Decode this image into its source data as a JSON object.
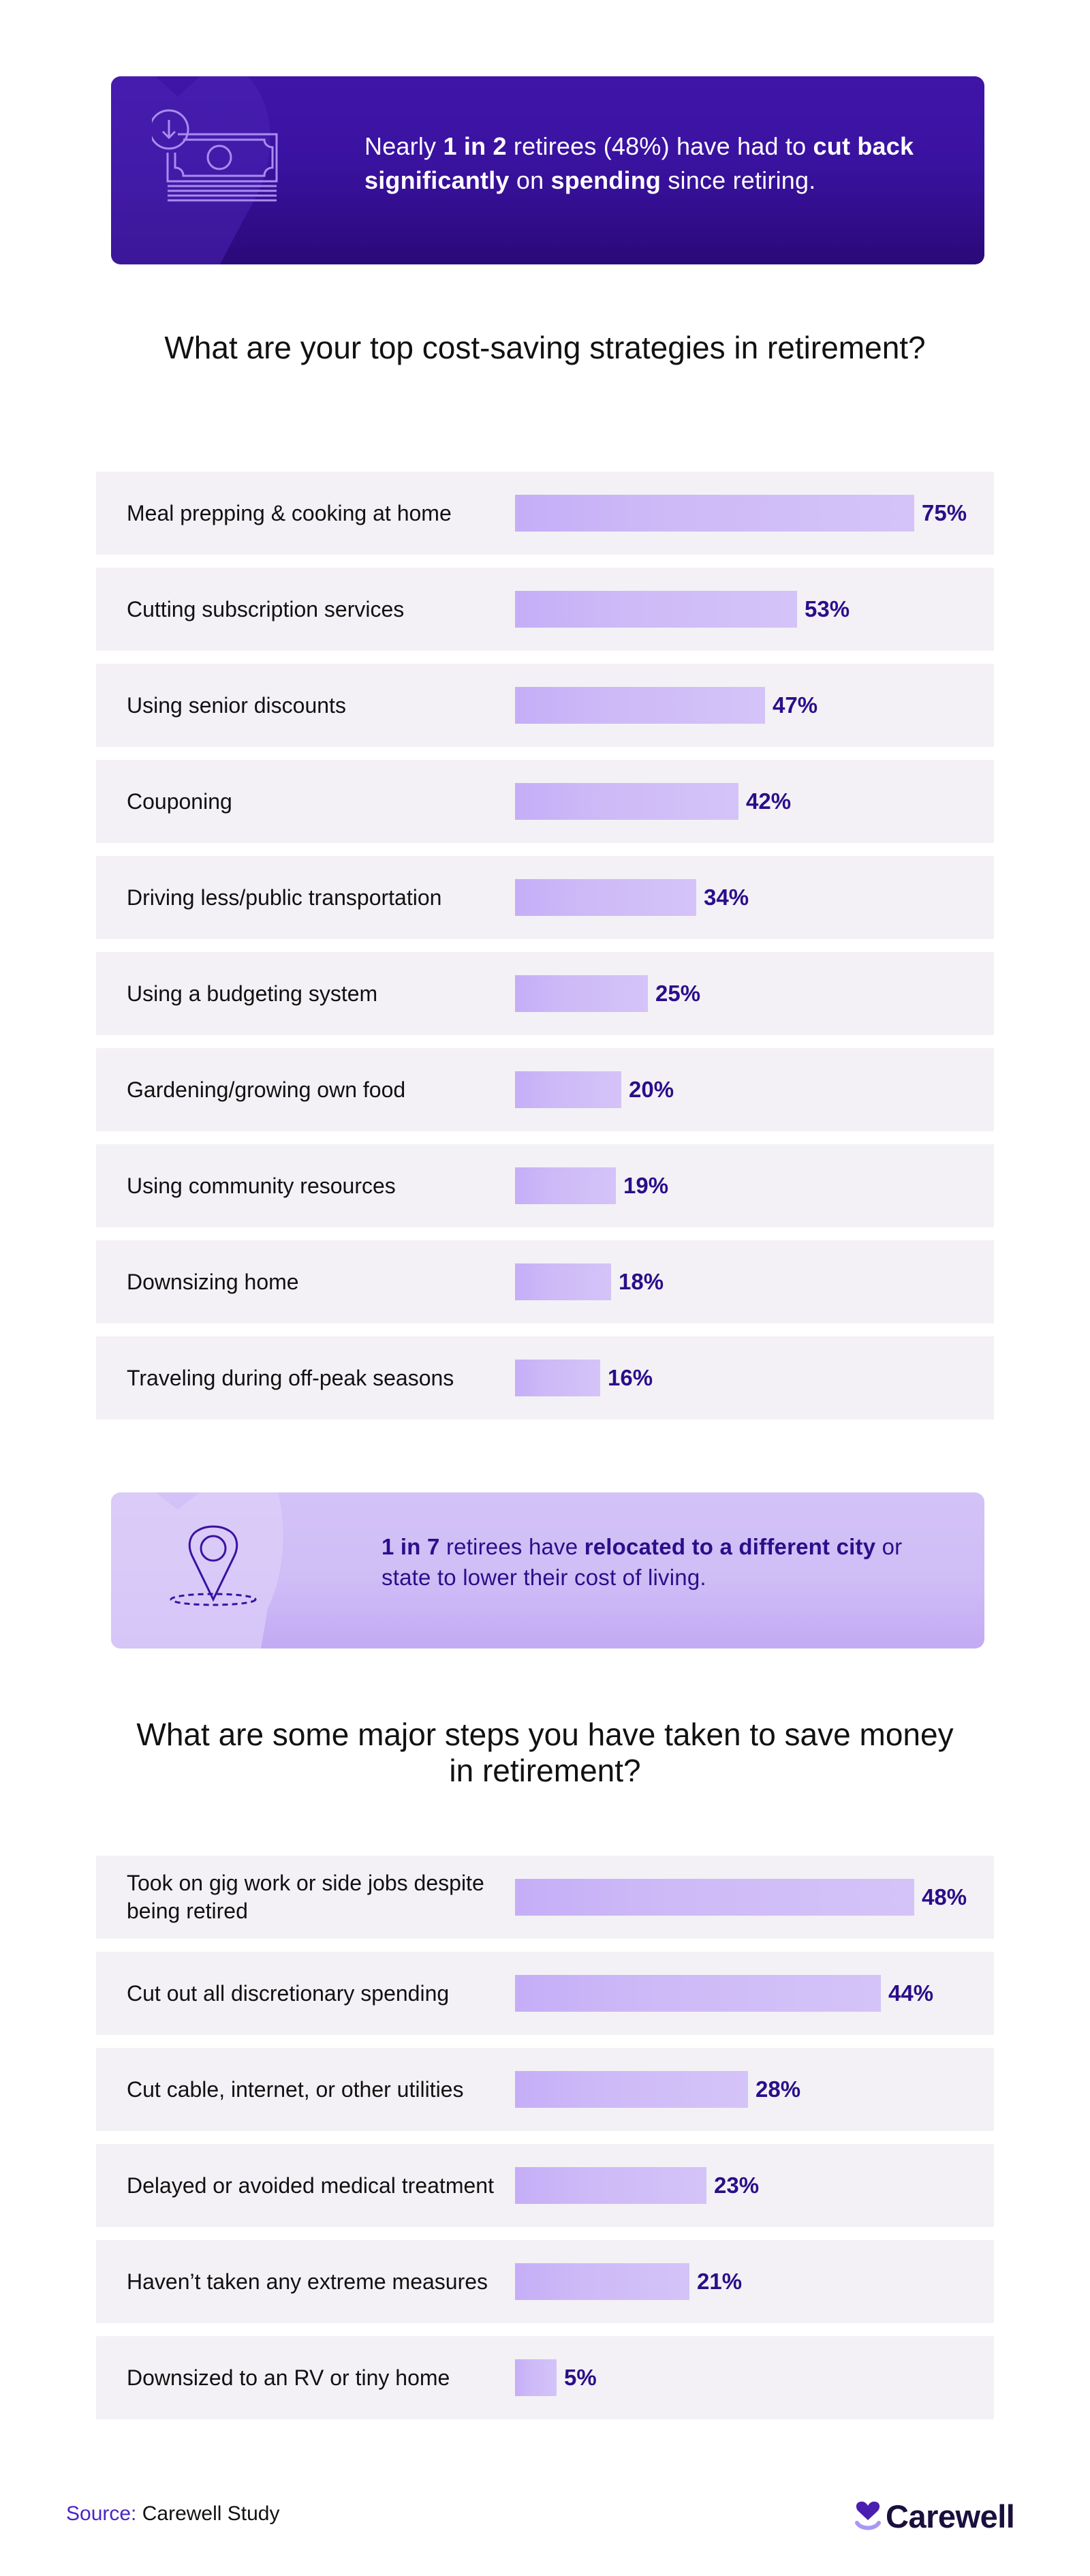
{
  "stat_card_1": {
    "icon": "money-down-icon",
    "segments": [
      {
        "text": "Nearly ",
        "bold": false
      },
      {
        "text": "1 in 2",
        "bold": true
      },
      {
        "text": " retirees (48%) have had to ",
        "bold": false
      },
      {
        "text": "cut back significantly",
        "bold": true
      },
      {
        "text": " on ",
        "bold": false
      },
      {
        "text": "spending",
        "bold": true
      },
      {
        "text": " since retiring.",
        "bold": false
      }
    ]
  },
  "section_1": {
    "title": "What are your top cost-saving strategies in retirement?"
  },
  "stat_card_2": {
    "icon": "location-pin-icon",
    "segments": [
      {
        "text": "1 in 7",
        "bold": true
      },
      {
        "text": " retirees have ",
        "bold": false
      },
      {
        "text": "relocated to a different city",
        "bold": true
      },
      {
        "text": " or state to lower their cost of living.",
        "bold": false
      }
    ]
  },
  "section_2": {
    "title": "What are some major steps you have taken to save money in retirement?"
  },
  "footer": {
    "source_label": "Source:",
    "source_value": "Carewell Study",
    "logo_text": "Carewell",
    "logo_icon": "carewell-heart-icon"
  },
  "colors": {
    "primary_dark": "#3f15a8",
    "accent_text": "#2a0e8a",
    "bar": "#c5aef7",
    "row_bg": "#f3f1f5",
    "light_card": "#d3c2f7",
    "source_label": "#4b25c4"
  },
  "chart_data": [
    {
      "type": "bar",
      "orientation": "horizontal",
      "title": "What are your top cost-saving strategies in retirement?",
      "xlabel": "",
      "ylabel": "",
      "value_format": "percent",
      "grid": false,
      "legend": null,
      "categories": [
        "Meal prepping & cooking at home",
        "Cutting subscription services",
        "Using senior discounts",
        "Couponing",
        "Driving less/public transportation",
        "Using a budgeting system",
        "Gardening/growing own food",
        "Using community resources",
        "Downsizing home",
        "Traveling during off-peak seasons"
      ],
      "values": [
        75,
        53,
        47,
        42,
        34,
        25,
        20,
        19,
        18,
        16
      ],
      "labels": [
        "75%",
        "53%",
        "47%",
        "42%",
        "34%",
        "25%",
        "20%",
        "19%",
        "18%",
        "16%"
      ]
    },
    {
      "type": "bar",
      "orientation": "horizontal",
      "title": "What are some major steps you have taken to save money in retirement?",
      "xlabel": "",
      "ylabel": "",
      "value_format": "percent",
      "grid": false,
      "legend": null,
      "categories": [
        "Took on gig work or side jobs despite being retired",
        "Cut out all discretionary spending",
        "Cut cable, internet, or other utilities",
        "Delayed or avoided medical treatment",
        "Haven’t taken any extreme measures",
        "Downsized to an RV or tiny home"
      ],
      "values": [
        48,
        44,
        28,
        23,
        21,
        5
      ],
      "labels": [
        "48%",
        "44%",
        "28%",
        "23%",
        "21%",
        "5%"
      ]
    }
  ]
}
